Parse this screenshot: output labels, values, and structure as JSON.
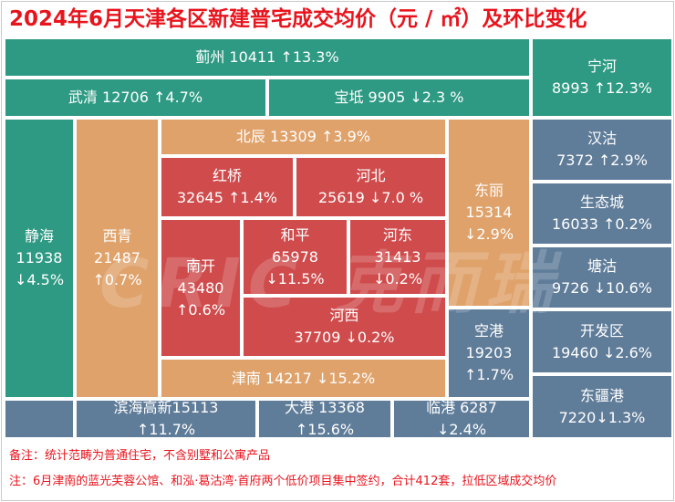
{
  "title": "2024年6月天津各区新建普宅成交均价（元 / ㎡）及环比变化",
  "watermark": "CRIC 克而瑞",
  "tiles": {
    "jizhou": {
      "line1": "蓟州 10411 ↑13.3%"
    },
    "ninghe": {
      "line1": "宁河",
      "line2": "8993 ↑12.3%"
    },
    "wuqing": {
      "line1": "武清 12706 ↑4.7%"
    },
    "baodi": {
      "line1": "宝坻 9905 ↓2.3 %"
    },
    "jinghai": {
      "line1": "静海",
      "line2": "11938",
      "line3": "↓4.5%"
    },
    "xiqing": {
      "line1": "西青",
      "line2": "21487",
      "line3": "↑0.7%"
    },
    "beichen": {
      "line1": "北辰 13309 ↑3.9%"
    },
    "dongli": {
      "line1": "东丽",
      "line2": "15314",
      "line3": "↓2.9%"
    },
    "hongqiao": {
      "line1": "红桥",
      "line2": "32645 ↑1.4%"
    },
    "hebei": {
      "line1": "河北",
      "line2": "25619 ↓7.0 %"
    },
    "nankai": {
      "line1": "南开",
      "line2": "43480",
      "line3": "↑0.6%"
    },
    "heping": {
      "line1": "和平",
      "line2": "65978",
      "line3": "↓11.5%"
    },
    "hedong": {
      "line1": "河东",
      "line2": "31413",
      "line3": "↓0.2%"
    },
    "hexi": {
      "line1": "河西",
      "line2": "37709 ↓0.2%"
    },
    "konggang": {
      "line1": "空港",
      "line2": "19203",
      "line3": "↑1.7%"
    },
    "jinnan": {
      "line1": "津南 14217 ↓15.2%"
    },
    "hangu": {
      "line1": "汉沽",
      "line2": "7372 ↑2.9%"
    },
    "shengtai": {
      "line1": "生态城",
      "line2": "16033 ↑0.2%"
    },
    "tanggu": {
      "line1": "塘沽",
      "line2": "9726 ↓10.6%"
    },
    "kaifa": {
      "line1": "开发区",
      "line2": "19460 ↓2.6%"
    },
    "dongjiang": {
      "line1": "东疆港",
      "line2": "7220↓1.3%"
    },
    "binhai": {
      "line1": "滨海高新15113",
      "line2": "↑11.7%"
    },
    "dagang": {
      "line1": "大港 13368",
      "line2": "↑15.6%"
    },
    "lingang": {
      "line1": "临港 6287",
      "line2": "↓2.4%"
    }
  },
  "notes": {
    "note1": "备注：统计范畴为普通住宅，不含别墅和公寓产品",
    "note2": "注：6月津南的蓝光芙蓉公馆、和泓·葛沽湾·首府两个低价项目集中签约，合计412套，拉低区域成交均价"
  },
  "colors": {
    "title_red": "#e8141d",
    "teal": "#2e9a83",
    "orange": "#dfa26b",
    "red": "#cf4b4c",
    "blue": "#5f7c99"
  }
}
